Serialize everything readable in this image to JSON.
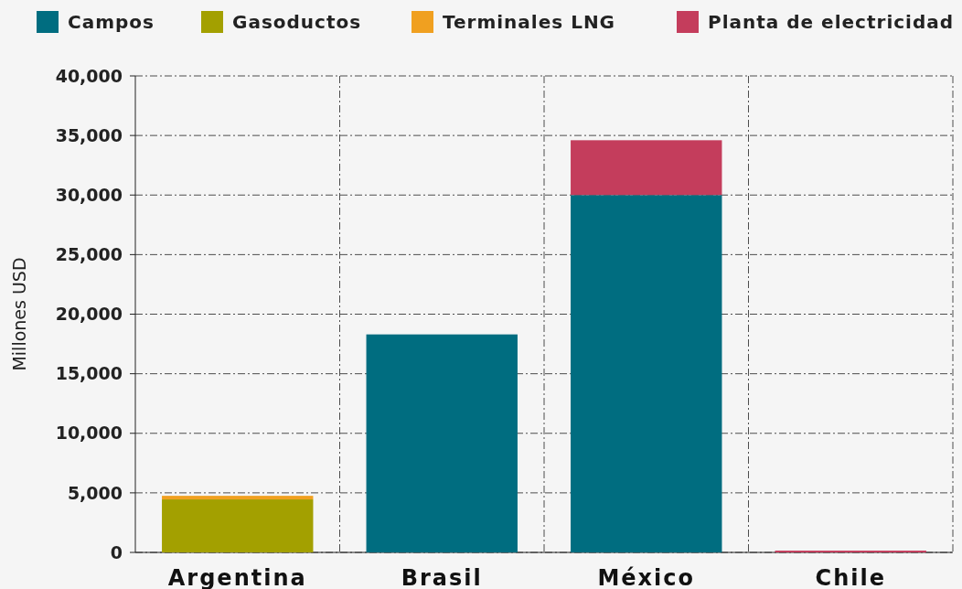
{
  "chart_data": {
    "type": "bar",
    "stacked": true,
    "ylabel": "Millones USD",
    "categories": [
      "Argentina",
      "Brasil",
      "México",
      "Chile"
    ],
    "series": [
      {
        "name": "Campos",
        "color": "#006d80",
        "values": [
          0,
          18300,
          30000,
          0
        ]
      },
      {
        "name": "Gasoductos",
        "color": "#a3a000",
        "values": [
          4450,
          0,
          0,
          0
        ]
      },
      {
        "name": "Terminales LNG",
        "color": "#f0a020",
        "values": [
          300,
          0,
          0,
          0
        ]
      },
      {
        "name": "Planta de electricidad",
        "color": "#c43d5c",
        "values": [
          0,
          0,
          4600,
          150
        ]
      }
    ],
    "ylim": [
      0,
      40000
    ],
    "yticks": [
      {
        "value": 0,
        "label": "0"
      },
      {
        "value": 5000,
        "label": "5,000"
      },
      {
        "value": 10000,
        "label": "10,000"
      },
      {
        "value": 15000,
        "label": "15,000"
      },
      {
        "value": 20000,
        "label": "20,000"
      },
      {
        "value": 25000,
        "label": "25,000"
      },
      {
        "value": 30000,
        "label": "30,000"
      },
      {
        "value": 35000,
        "label": "35,000"
      },
      {
        "value": 40000,
        "label": "40,000"
      }
    ],
    "grid": true,
    "legend": "top left"
  }
}
